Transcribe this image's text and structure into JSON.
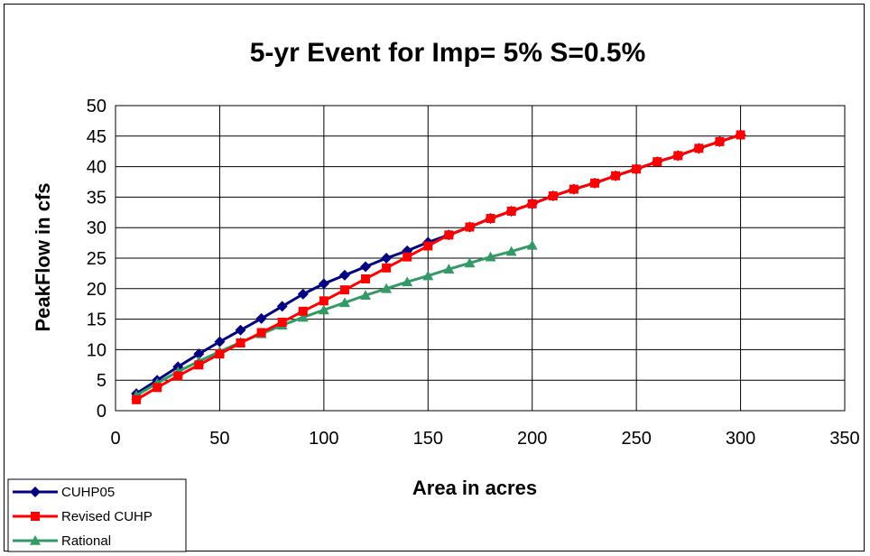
{
  "chart_data": {
    "type": "line",
    "title": "5-yr Event for Imp= 5% S=0.5%",
    "xlabel": "Area in acres",
    "ylabel": "PeakFlow in cfs",
    "xlim": [
      0,
      350
    ],
    "ylim": [
      0,
      50
    ],
    "x_ticks": [
      0,
      50,
      100,
      150,
      200,
      250,
      300,
      350
    ],
    "y_ticks": [
      0,
      5,
      10,
      15,
      20,
      25,
      30,
      35,
      40,
      45,
      50
    ],
    "grid": "horizontal and vertical",
    "legend_position": "bottom-left",
    "series": [
      {
        "name": "CUHP05",
        "color": "#000080",
        "marker": "diamond",
        "x": [
          10,
          20,
          30,
          40,
          50,
          60,
          70,
          80,
          90,
          100,
          110,
          120,
          130,
          140,
          150,
          160,
          170,
          180,
          190,
          200,
          210,
          220,
          230,
          240,
          250,
          260,
          270,
          280,
          290,
          300
        ],
        "y": [
          2.8,
          5.0,
          7.2,
          9.3,
          11.3,
          13.2,
          15.1,
          17.1,
          19.1,
          20.8,
          22.2,
          23.6,
          25.0,
          26.2,
          27.6,
          28.8,
          30.1,
          31.5,
          32.7,
          33.9,
          35.2,
          36.3,
          37.3,
          38.5,
          39.6,
          40.8,
          41.8,
          43.0,
          44.1,
          45.2
        ]
      },
      {
        "name": "Revised CUHP",
        "color": "#ff0000",
        "marker": "square",
        "x": [
          10,
          20,
          30,
          40,
          50,
          60,
          70,
          80,
          90,
          100,
          110,
          120,
          130,
          140,
          150,
          160,
          170,
          180,
          190,
          200,
          210,
          220,
          230,
          240,
          250,
          260,
          270,
          280,
          290,
          300
        ],
        "y": [
          1.8,
          3.8,
          5.7,
          7.5,
          9.3,
          11.1,
          12.8,
          14.5,
          16.3,
          18.0,
          19.8,
          21.6,
          23.4,
          25.2,
          27.0,
          28.8,
          30.1,
          31.5,
          32.7,
          33.9,
          35.2,
          36.3,
          37.3,
          38.5,
          39.6,
          40.8,
          41.8,
          43.0,
          44.1,
          45.2
        ]
      },
      {
        "name": "Rational",
        "color": "#339966",
        "marker": "triangle",
        "x": [
          10,
          20,
          30,
          40,
          50,
          60,
          70,
          80,
          90,
          100,
          110,
          120,
          130,
          140,
          150,
          160,
          170,
          180,
          190,
          200
        ],
        "y": [
          2.5,
          4.5,
          6.4,
          8.1,
          9.7,
          11.2,
          12.6,
          14.0,
          15.3,
          16.5,
          17.7,
          18.9,
          20.0,
          21.1,
          22.1,
          23.2,
          24.2,
          25.2,
          26.1,
          27.1
        ]
      }
    ]
  }
}
